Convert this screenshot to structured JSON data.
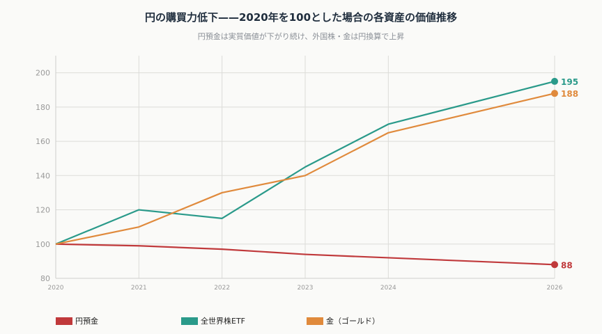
{
  "title": "円の購買力低下——2020年を100とした場合の各資産の価値推移",
  "subtitle": "円預金は実質価値が下がり続け、外国株・金は円換算で上昇",
  "chart_data": {
    "type": "line",
    "x": [
      2020,
      2021,
      2022,
      2023,
      2024,
      2026
    ],
    "x_tick_labels": [
      "2020",
      "2021",
      "2022",
      "2023",
      "2024",
      "2026"
    ],
    "y_tick_labels": [
      "80",
      "100",
      "120",
      "140",
      "160",
      "180",
      "200"
    ],
    "ylim": [
      80,
      210
    ],
    "xlim": [
      2020,
      2026
    ],
    "grid": true,
    "legend_position": "bottom",
    "series": [
      {
        "name": "円預金",
        "color": "#c0393b",
        "values": [
          100,
          99,
          97,
          94,
          92,
          88
        ],
        "end_label": "88"
      },
      {
        "name": "全世界株ETF",
        "color": "#2a9a8a",
        "values": [
          100,
          120,
          115,
          145,
          170,
          195
        ],
        "end_label": "195"
      },
      {
        "name": "金（ゴールド）",
        "color": "#e08a3c",
        "values": [
          100,
          110,
          130,
          140,
          165,
          188
        ],
        "end_label": "188"
      }
    ]
  }
}
